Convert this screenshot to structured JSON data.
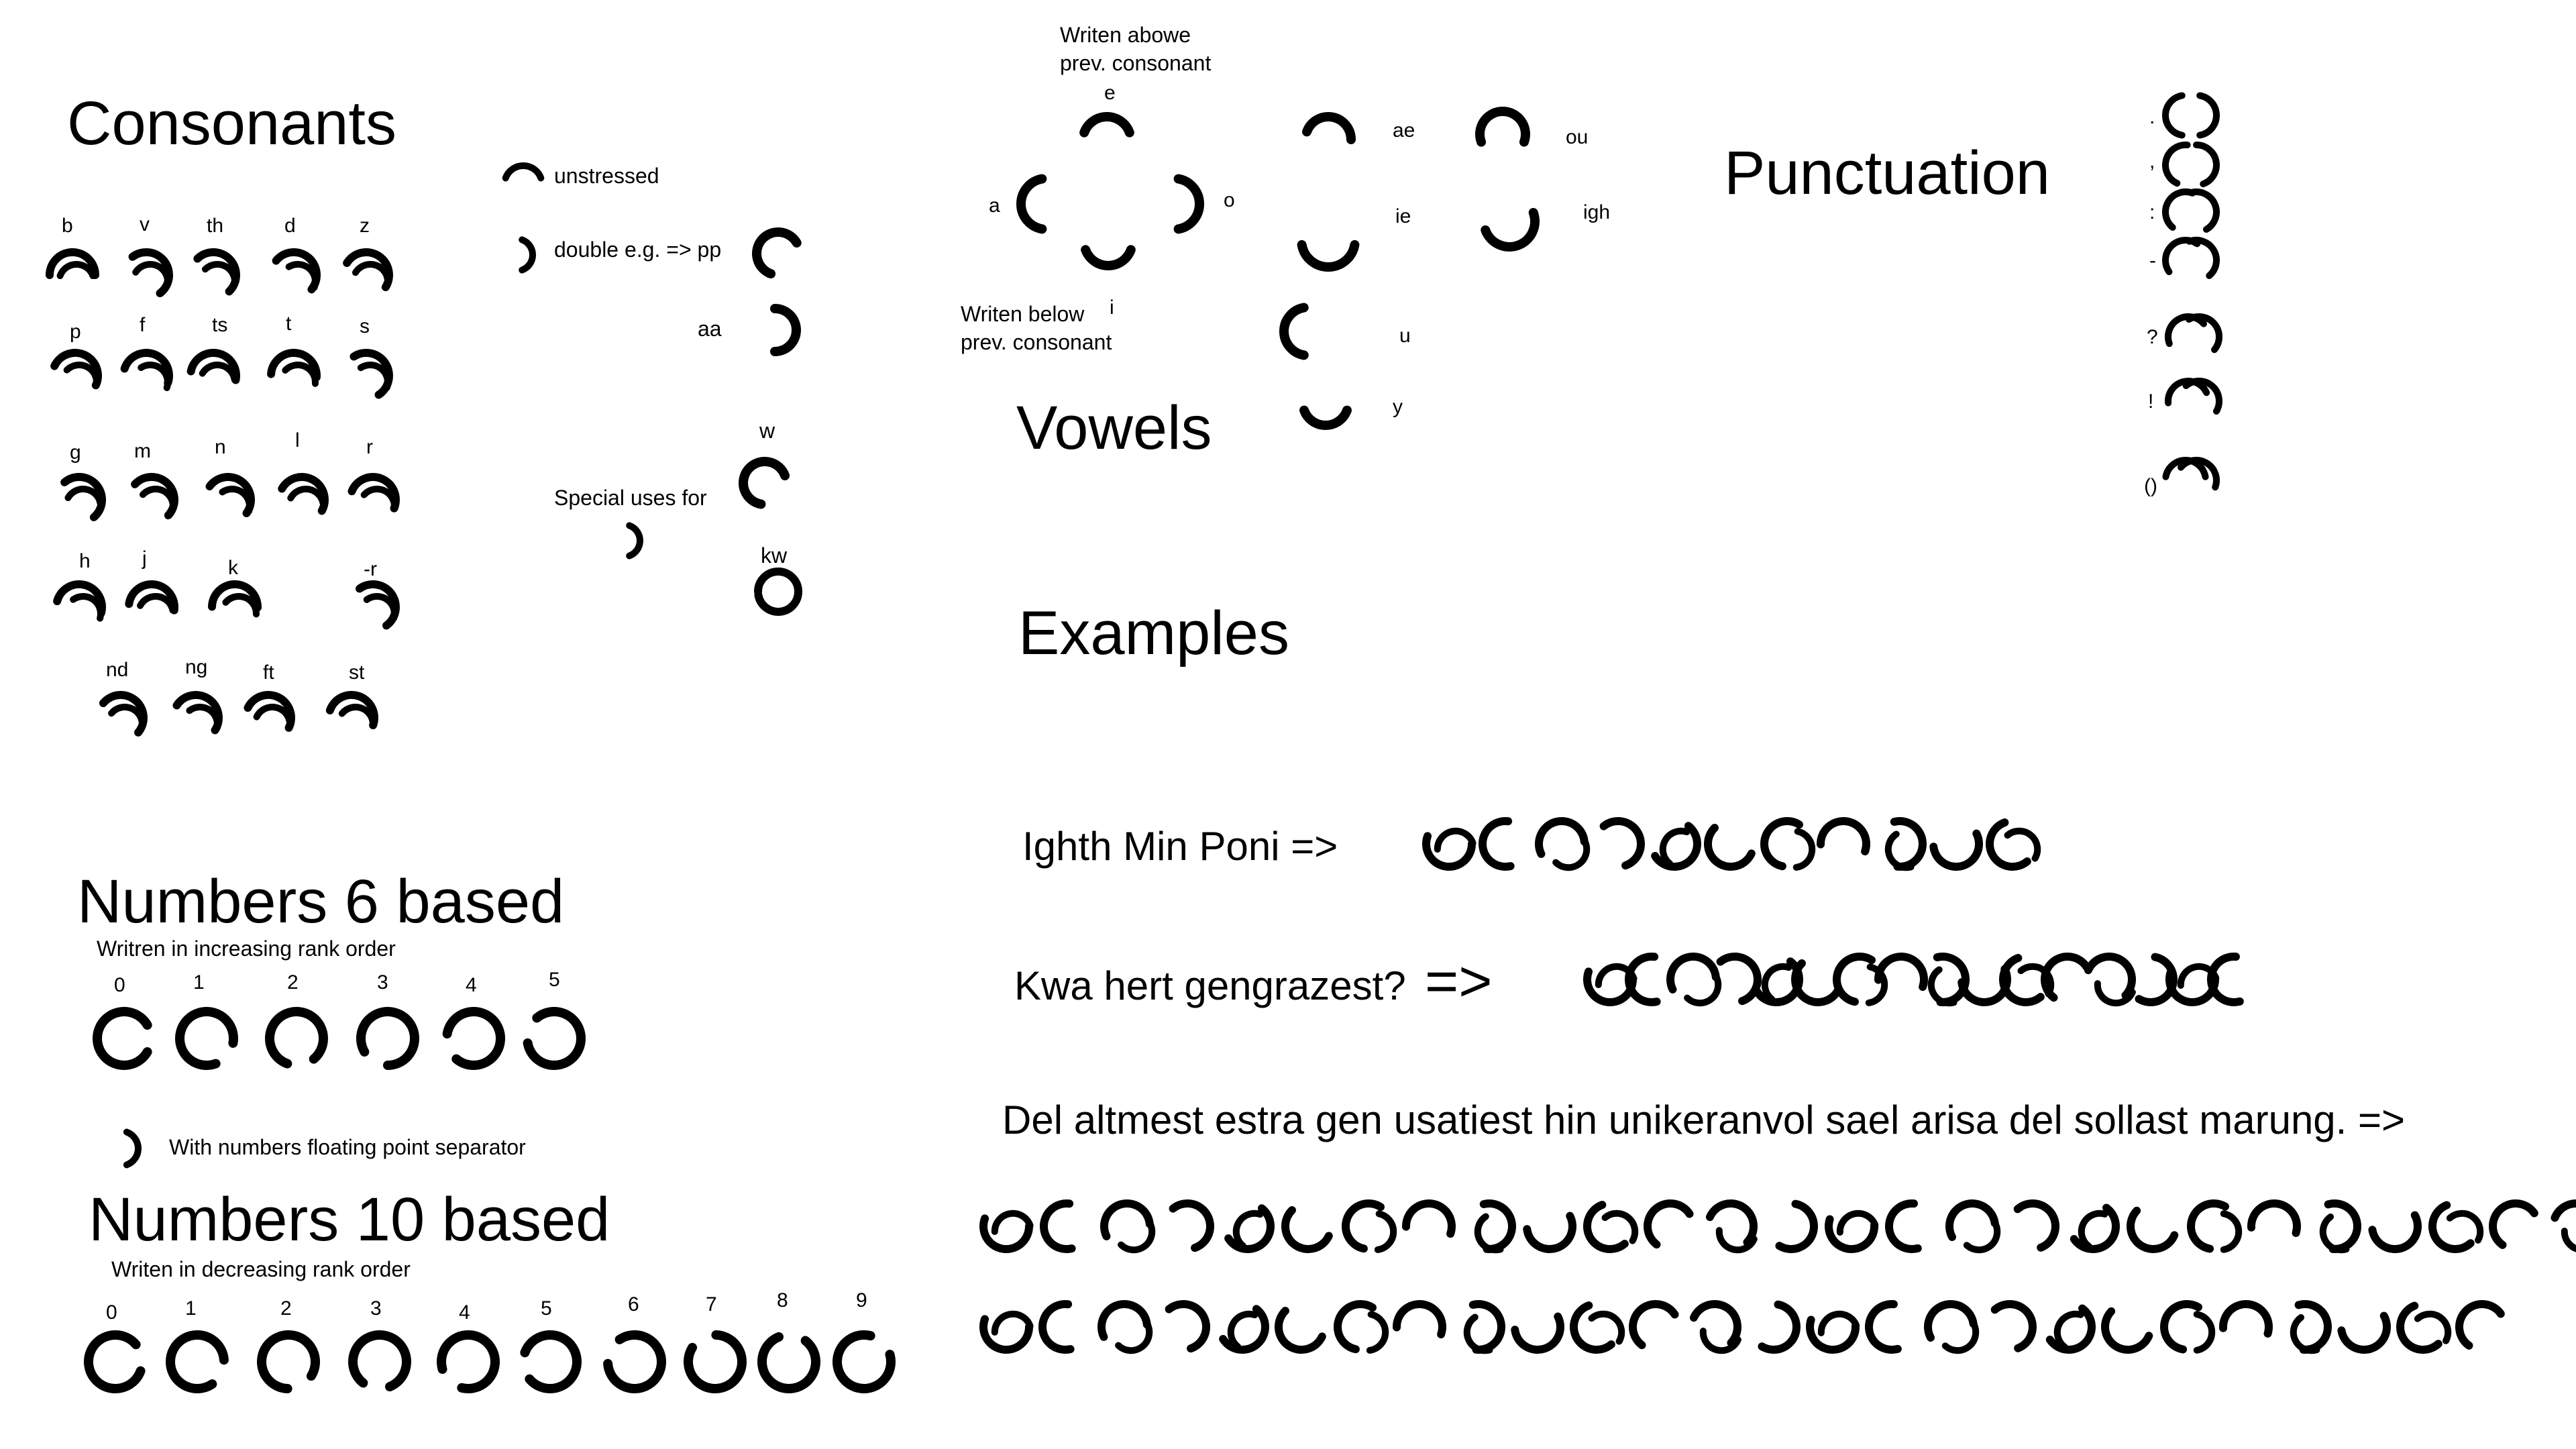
{
  "headings": {
    "consonants": "Consonants",
    "vowels": "Vowels",
    "punctuation": "Punctuation",
    "examples": "Examples",
    "numbers6": "Numbers 6 based",
    "numbers10": "Numbers 10 based"
  },
  "consonants": {
    "row1": [
      "b",
      "v",
      "th",
      "d",
      "z"
    ],
    "row2": [
      "p",
      "f",
      "ts",
      "t",
      "s"
    ],
    "row3": [
      "g",
      "m",
      "n",
      "l",
      "r"
    ],
    "row4": [
      "h",
      "j",
      "k",
      "-r"
    ],
    "row5": [
      "nd",
      "ng",
      "ft",
      "st"
    ]
  },
  "modifiers": {
    "unstressed": "unstressed",
    "double": "double e.g. => pp",
    "aa": "aa",
    "w": "w",
    "special": "Special uses for",
    "kw": "kw"
  },
  "vowels": {
    "above_note_1": "Writen abowe",
    "above_note_2": "prev. consonant",
    "below_note_1": "Writen below",
    "below_note_2": "prev. consonant",
    "e": "e",
    "a": "a",
    "o": "o",
    "i": "i",
    "ae": "ae",
    "ou": "ou",
    "ie": "ie",
    "igh": "igh",
    "u": "u",
    "y": "y"
  },
  "punctuation": {
    "marks": [
      ".",
      ",",
      ":",
      "-",
      "?",
      "!",
      "()"
    ]
  },
  "examples": {
    "ex1": "Ighth Min Poni =>",
    "ex2": "Kwa hert gengrazest?",
    "ex2_arrow": "=>",
    "ex3": "Del altmest estra gen usatiest hin unikeranvol sael arisa del sollast marung. =>"
  },
  "numbers6": {
    "note": "Writren in increasing rank order",
    "digits": [
      "0",
      "1",
      "2",
      "3",
      "4",
      "5"
    ],
    "separator_note": "With numbers floating point separator"
  },
  "numbers10": {
    "note": "Writen in decreasing rank order",
    "digits": [
      "0",
      "1",
      "2",
      "3",
      "4",
      "5",
      "6",
      "7",
      "8",
      "9"
    ]
  }
}
